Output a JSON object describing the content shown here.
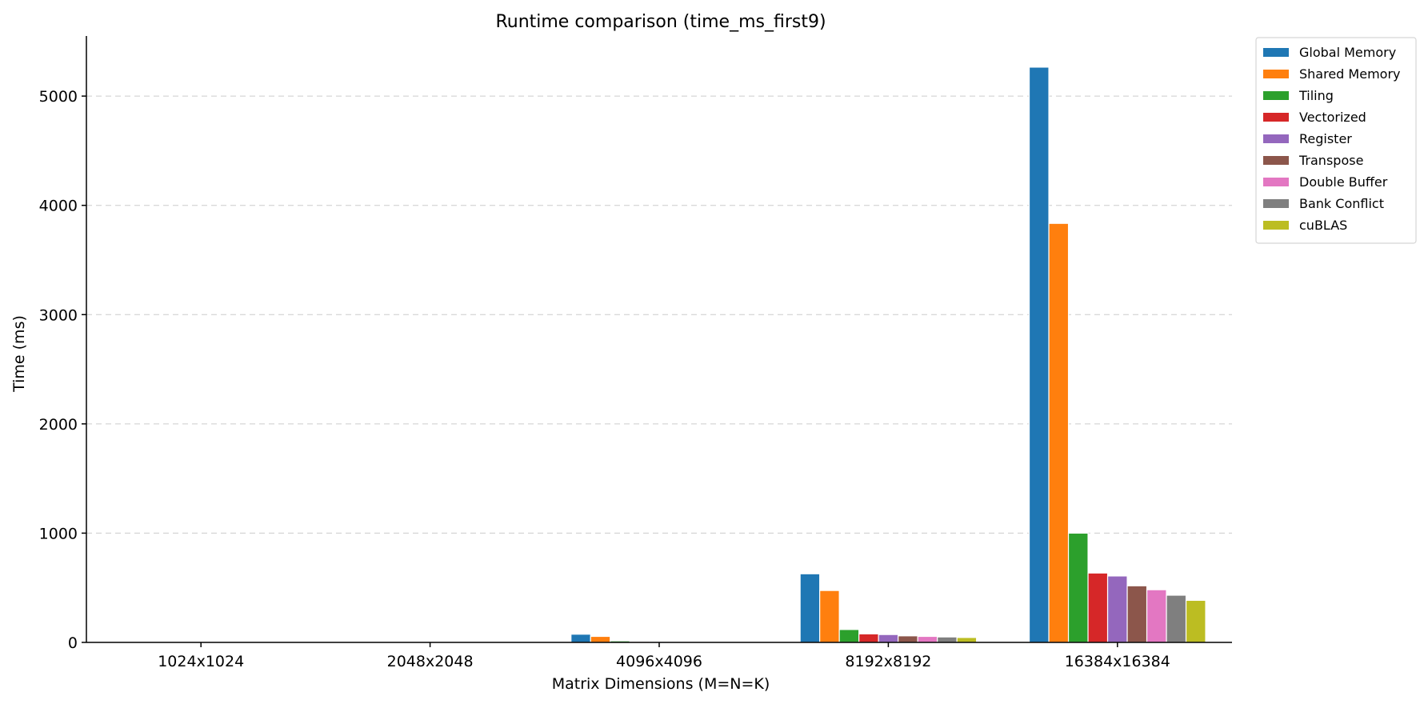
{
  "chart_data": {
    "type": "bar",
    "title": "Runtime comparison (time_ms_first9)",
    "xlabel": "Matrix Dimensions (M=N=K)",
    "ylabel": "Time (ms)",
    "ylim": [
      0,
      5550
    ],
    "yticks": [
      0,
      1000,
      2000,
      3000,
      4000,
      5000
    ],
    "grid": "y-dashed",
    "legend_position": "top-right-outside",
    "categories": [
      "1024x1024",
      "2048x2048",
      "4096x4096",
      "8192x8192",
      "16384x16384"
    ],
    "series": [
      {
        "name": "Global Memory",
        "color": "#1f77b4",
        "values": [
          1,
          8,
          75,
          628,
          5265
        ]
      },
      {
        "name": "Shared Memory",
        "color": "#ff7f0e",
        "values": [
          1,
          6,
          55,
          475,
          3835
        ]
      },
      {
        "name": "Tiling",
        "color": "#2ca02c",
        "values": [
          0.2,
          1.5,
          14,
          118,
          1000
        ]
      },
      {
        "name": "Vectorized",
        "color": "#d62728",
        "values": [
          0.1,
          1,
          9,
          78,
          635
        ]
      },
      {
        "name": "Register",
        "color": "#9467bd",
        "values": [
          0.1,
          1,
          9,
          72,
          608
        ]
      },
      {
        "name": "Transpose",
        "color": "#8c564b",
        "values": [
          0.1,
          0.8,
          7,
          60,
          518
        ]
      },
      {
        "name": "Double Buffer",
        "color": "#e377c2",
        "values": [
          0.1,
          0.7,
          6,
          55,
          482
        ]
      },
      {
        "name": "Bank Conflict",
        "color": "#7f7f7f",
        "values": [
          0.1,
          0.6,
          5,
          50,
          432
        ]
      },
      {
        "name": "cuBLAS",
        "color": "#bcbd22",
        "values": [
          0.1,
          0.5,
          4,
          45,
          385
        ]
      }
    ]
  }
}
